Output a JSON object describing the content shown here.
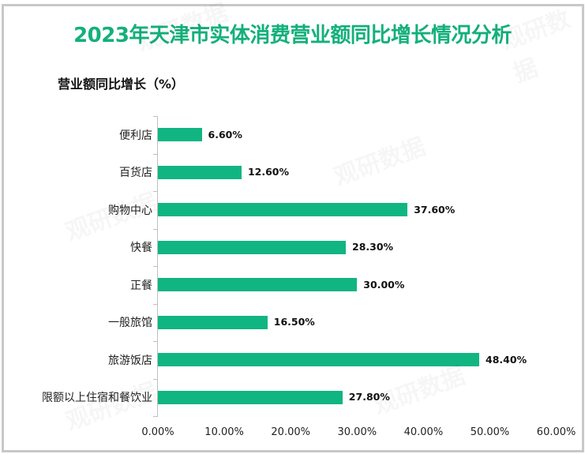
{
  "title": "2023年天津市实体消费营业额同比增长情况分析",
  "y_axis_title": "营业额同比增长（%）",
  "colors": {
    "title": "#13b07a",
    "bar": "#10b582",
    "frame": "#c8c8c8",
    "axis": "#bfbfbf"
  },
  "watermark": "观研数据",
  "x_ticks": [
    "0.00%",
    "10.00%",
    "20.00%",
    "30.00%",
    "40.00%",
    "50.00%",
    "60.00%"
  ],
  "bars": [
    {
      "label": "便利店",
      "value": 6.6,
      "display": "6.60%"
    },
    {
      "label": "百货店",
      "value": 12.6,
      "display": "12.60%"
    },
    {
      "label": "购物中心",
      "value": 37.6,
      "display": "37.60%"
    },
    {
      "label": "快餐",
      "value": 28.3,
      "display": "28.30%"
    },
    {
      "label": "正餐",
      "value": 30.0,
      "display": "30.00%"
    },
    {
      "label": "一般旅馆",
      "value": 16.5,
      "display": "16.50%"
    },
    {
      "label": "旅游饭店",
      "value": 48.4,
      "display": "48.40%"
    },
    {
      "label": "限额以上住宿和餐饮业",
      "value": 27.8,
      "display": "27.80%"
    }
  ],
  "chart_data": {
    "type": "bar",
    "orientation": "horizontal",
    "title": "2023年天津市实体消费营业额同比增长情况分析",
    "xlabel": "",
    "ylabel": "营业额同比增长（%）",
    "categories": [
      "便利店",
      "百货店",
      "购物中心",
      "快餐",
      "正餐",
      "一般旅馆",
      "旅游饭店",
      "限额以上住宿和餐饮业"
    ],
    "values": [
      6.6,
      12.6,
      37.6,
      28.3,
      30.0,
      16.5,
      48.4,
      27.8
    ],
    "value_labels": [
      "6.60%",
      "12.60%",
      "37.60%",
      "28.30%",
      "30.00%",
      "16.50%",
      "48.40%",
      "27.80%"
    ],
    "xlim": [
      0,
      60
    ],
    "x_tick_labels": [
      "0.00%",
      "10.00%",
      "20.00%",
      "30.00%",
      "40.00%",
      "50.00%",
      "60.00%"
    ],
    "grid": false,
    "legend": null,
    "bar_color": "#10b582"
  }
}
